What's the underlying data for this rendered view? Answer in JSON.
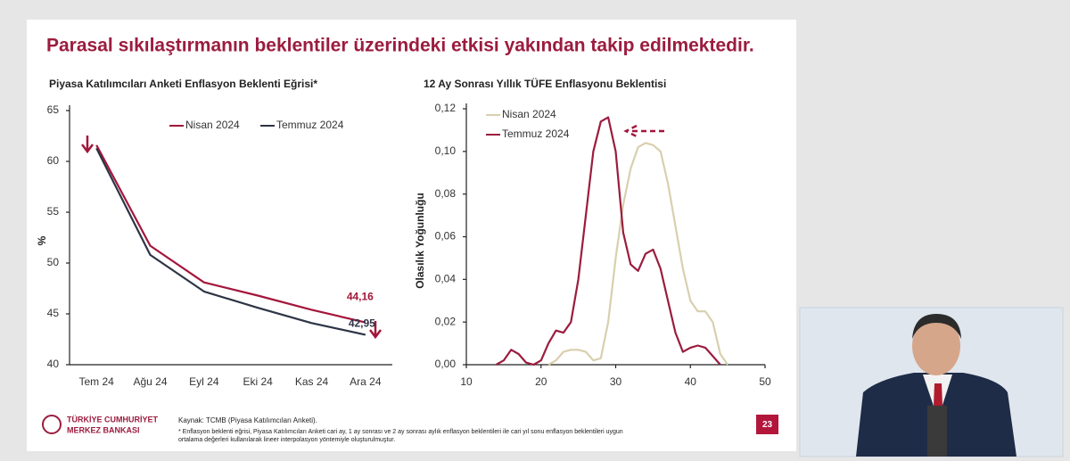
{
  "slide_title": "Parasal sıkılaştırmanın beklentiler üzerindeki etkisi yakından takip edilmektedir.",
  "source": "Kaynak: TCMB (Piyasa Katılımcıları Anketi).",
  "footnote": [
    "* Enflasyon beklenti eğrisi, Piyasa Katılımcıları Anketi cari ay, 1 ay sonrası ve 2 ay sonrası aylık enflasyon beklentileri ile cari yıl sonu enflasyon beklentileri uygun",
    "ortalama değerleri kullanılarak lineer interpolasyon yöntemiyle oluşturulmuştur."
  ],
  "logo": [
    "TÜRKİYE CUMHURİYET",
    "MERKEZ BANKASI"
  ],
  "page_number": "23",
  "chart_data": [
    {
      "type": "line",
      "title": "Piyasa Katılımcıları Anketi Enflasyon Beklenti Eğrisi*",
      "y_label": "%",
      "categories": [
        "Tem 24",
        "Ağu 24",
        "Eyl 24",
        "Eki 24",
        "Kas 24",
        "Ara 24"
      ],
      "ylim": [
        40,
        65
      ],
      "yticks": [
        40,
        45,
        50,
        55,
        60,
        65
      ],
      "series": [
        {
          "name": "Nisan 2024",
          "color": "#a3163b",
          "values": [
            61.6,
            51.7,
            48.1,
            46.8,
            45.4,
            44.16
          ],
          "value_labels": [
            null,
            null,
            null,
            null,
            null,
            "44,16"
          ]
        },
        {
          "name": "Temmuz 2024",
          "color": "#2d3446",
          "values": [
            61.3,
            50.8,
            47.2,
            45.6,
            44.1,
            42.95
          ],
          "value_labels": [
            null,
            null,
            null,
            null,
            null,
            "42,95"
          ]
        }
      ]
    },
    {
      "type": "line",
      "title": "12 Ay Sonrası Yıllık TÜFE Enflasyonu Beklentisi",
      "y_label": "Olasılık Yoğunluğu",
      "xlim": [
        10,
        50
      ],
      "xticks": [
        10,
        20,
        30,
        40,
        50
      ],
      "ylim": [
        0,
        0.12
      ],
      "yticks": [
        {
          "value": 0,
          "label": "0,00"
        },
        {
          "value": 0.02,
          "label": "0,02"
        },
        {
          "value": 0.04,
          "label": "0,04"
        },
        {
          "value": 0.06,
          "label": "0,06"
        },
        {
          "value": 0.08,
          "label": "0,08"
        },
        {
          "value": 0.1,
          "label": "0,10"
        },
        {
          "value": 0.12,
          "label": "0,12"
        }
      ],
      "series": [
        {
          "name": "Nisan 2024",
          "color": "#d9cfae",
          "x": [
            21,
            22,
            23,
            24,
            25,
            26,
            27,
            28,
            29,
            30,
            31,
            32,
            33,
            34,
            35,
            36,
            37,
            38,
            39,
            40,
            41,
            42,
            43,
            44,
            45
          ],
          "values": [
            0,
            0.002,
            0.006,
            0.007,
            0.007,
            0.006,
            0.002,
            0.003,
            0.02,
            0.05,
            0.075,
            0.092,
            0.102,
            0.104,
            0.103,
            0.1,
            0.085,
            0.065,
            0.045,
            0.03,
            0.025,
            0.025,
            0.02,
            0.005,
            0
          ]
        },
        {
          "name": "Temmuz 2024",
          "color": "#9b1c3e",
          "x": [
            14,
            15,
            16,
            17,
            18,
            19,
            20,
            21,
            22,
            23,
            24,
            25,
            26,
            27,
            28,
            29,
            30,
            31,
            32,
            33,
            34,
            35,
            36,
            37,
            38,
            39,
            40,
            41,
            42,
            43,
            44
          ],
          "values": [
            0,
            0.002,
            0.007,
            0.005,
            0.001,
            0,
            0.002,
            0.01,
            0.016,
            0.015,
            0.02,
            0.04,
            0.07,
            0.1,
            0.114,
            0.116,
            0.1,
            0.062,
            0.047,
            0.044,
            0.052,
            0.054,
            0.045,
            0.03,
            0.015,
            0.006,
            0.008,
            0.009,
            0.008,
            0.004,
            0
          ]
        }
      ]
    }
  ]
}
